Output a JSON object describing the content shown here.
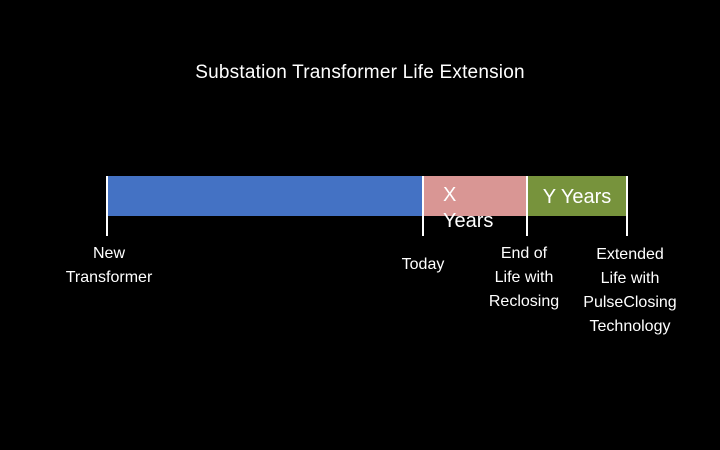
{
  "title": "Substation Transformer Life Extension",
  "colors": {
    "background": "#000000",
    "baseline_segment": "#4472c4",
    "x_years_segment": "#d99694",
    "y_years_segment": "#77933c",
    "text": "#ffffff"
  },
  "segments": [
    {
      "id": "baseline",
      "label": ""
    },
    {
      "id": "x-years",
      "label": "X\nYears"
    },
    {
      "id": "y-years",
      "label": "Y Years"
    }
  ],
  "milestones": [
    {
      "id": "new-transformer",
      "label": "New\nTransformer"
    },
    {
      "id": "today",
      "label": "Today"
    },
    {
      "id": "end-of-life",
      "label": "End of\nLife with\nReclosing"
    },
    {
      "id": "extended-life",
      "label": "Extended\nLife with\nPulseClosing\nTechnology"
    }
  ]
}
